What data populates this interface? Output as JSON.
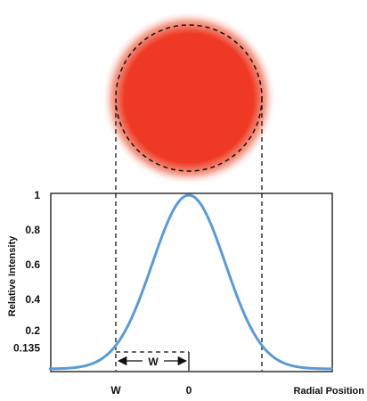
{
  "colors": {
    "beam_core": "#ee3a24",
    "beam_glow": "#f5a493",
    "curve": "#5b9bd5",
    "dashes": "#111111",
    "frame": "#111111"
  },
  "width_marker": {
    "label": "W"
  },
  "chart_data": {
    "type": "line",
    "title": "",
    "xlabel": "Radial Position",
    "ylabel": "Relative Intensity",
    "x_tick_labels": [
      {
        "x": -1,
        "label": "W"
      },
      {
        "x": 0,
        "label": "0"
      }
    ],
    "y_ticks": [
      {
        "y": 1,
        "label": "1"
      },
      {
        "y": 0.8,
        "label": "0.8"
      },
      {
        "y": 0.6,
        "label": "0.6"
      },
      {
        "y": 0.4,
        "label": "0.4"
      },
      {
        "y": 0.2,
        "label": "0.2"
      },
      {
        "y": 0.135,
        "label": "0.135"
      }
    ],
    "xlim": [
      -1.9,
      1.95
    ],
    "ylim": [
      0,
      1
    ],
    "grid": false,
    "series": [
      {
        "function": "gaussian",
        "x": [
          -1.9,
          -1.6,
          -1.4,
          -1.2,
          -1.0,
          -0.8,
          -0.6,
          -0.4,
          -0.2,
          0,
          0.2,
          0.4,
          0.6,
          0.8,
          1.0,
          1.2,
          1.4,
          1.6,
          1.9
        ],
        "y": [
          0.001,
          0.006,
          0.02,
          0.056,
          0.135,
          0.278,
          0.487,
          0.726,
          0.923,
          1,
          0.923,
          0.726,
          0.487,
          0.278,
          0.135,
          0.056,
          0.02,
          0.006,
          0.001
        ]
      }
    ],
    "reference_lines": [
      {
        "x": -1,
        "style": "dashed"
      },
      {
        "x": 1,
        "style": "dashed"
      }
    ]
  }
}
